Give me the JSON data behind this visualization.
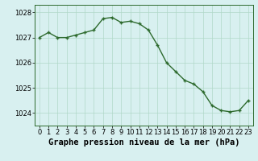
{
  "x": [
    0,
    1,
    2,
    3,
    4,
    5,
    6,
    7,
    8,
    9,
    10,
    11,
    12,
    13,
    14,
    15,
    16,
    17,
    18,
    19,
    20,
    21,
    22,
    23
  ],
  "y": [
    1027.0,
    1027.2,
    1027.0,
    1027.0,
    1027.1,
    1027.2,
    1027.3,
    1027.75,
    1027.8,
    1027.6,
    1027.65,
    1027.55,
    1027.3,
    1026.7,
    1026.0,
    1025.65,
    1025.3,
    1025.15,
    1024.85,
    1024.3,
    1024.1,
    1024.05,
    1024.1,
    1024.5
  ],
  "line_color": "#2d6a2d",
  "marker_color": "#2d6a2d",
  "bg_color": "#d8f0f0",
  "grid_color": "#b0d8c8",
  "xlabel": "Graphe pression niveau de la mer (hPa)",
  "ylim": [
    1023.5,
    1028.3
  ],
  "xlim": [
    -0.5,
    23.5
  ],
  "yticks": [
    1024,
    1025,
    1026,
    1027,
    1028
  ],
  "xticks": [
    0,
    1,
    2,
    3,
    4,
    5,
    6,
    7,
    8,
    9,
    10,
    11,
    12,
    13,
    14,
    15,
    16,
    17,
    18,
    19,
    20,
    21,
    22,
    23
  ],
  "tick_fontsize": 6.0,
  "xlabel_fontsize": 7.5,
  "line_width": 1.0,
  "marker_size": 3.5
}
